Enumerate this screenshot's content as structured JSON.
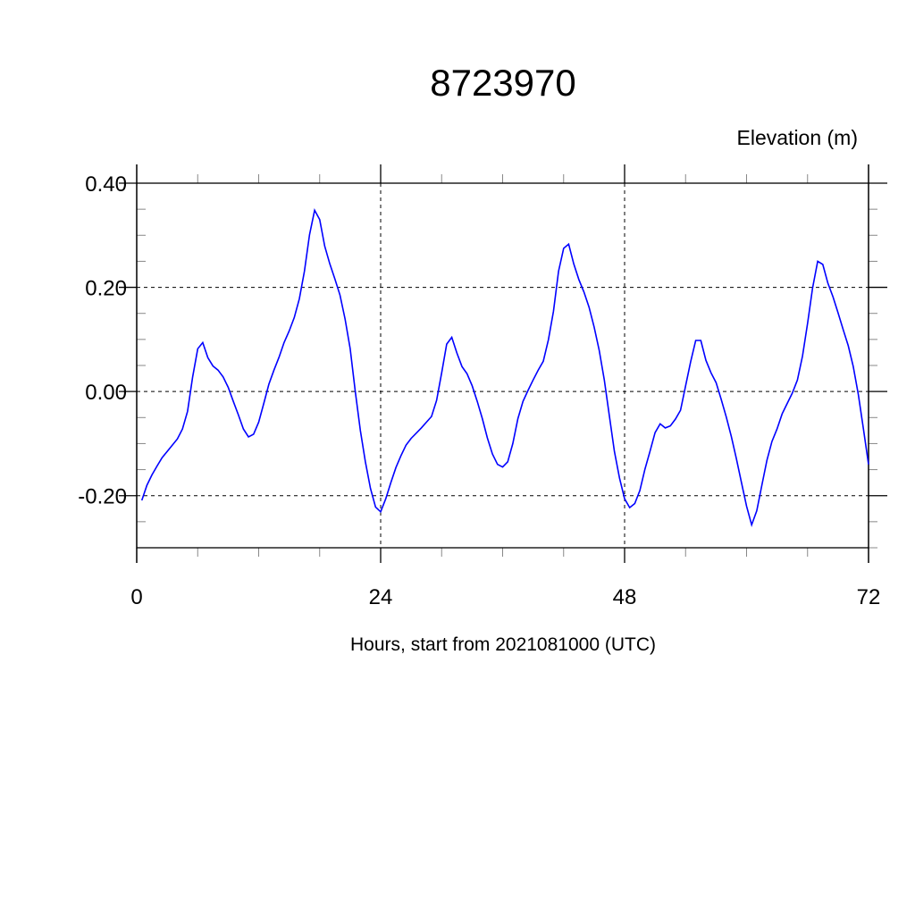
{
  "chart_data": {
    "type": "line",
    "title": "8723970",
    "ylabel": "Elevation (m)",
    "xlabel": "Hours, start from 2021081000 (UTC)",
    "xlim": [
      0,
      72
    ],
    "ylim": [
      -0.3,
      0.4
    ],
    "xticks": [
      0,
      24,
      48,
      72
    ],
    "xtick_labels": [
      "0",
      "24",
      "48",
      "72"
    ],
    "yticks": [
      -0.2,
      0.0,
      0.2,
      0.4
    ],
    "ytick_labels": [
      "-0.20",
      "0.00",
      "0.20",
      "0.40"
    ],
    "grid": "dashed, at major ticks",
    "line_color": "#0000ff",
    "series": [
      {
        "x": [
          0.5,
          1,
          1.5,
          2,
          2.5,
          3,
          3.5,
          4,
          4.5,
          5,
          5.5,
          6,
          6.5,
          7,
          7.5,
          8,
          8.5,
          9,
          9.5,
          10,
          10.5,
          11,
          11.5,
          12,
          12.5,
          13,
          13.5,
          14,
          14.5,
          15,
          15.5,
          16,
          16.5,
          17,
          17.5,
          18,
          18.5,
          19,
          19.5,
          20,
          20.5,
          21,
          21.5,
          22,
          22.5,
          23,
          23.5,
          24,
          24.5,
          25,
          25.5,
          26,
          26.5,
          27,
          27.5,
          28,
          28.5,
          29,
          29.5,
          30,
          30.5,
          31,
          31.5,
          32,
          32.5,
          33,
          33.5,
          34,
          34.5,
          35,
          35.5,
          36,
          36.5,
          37,
          37.5,
          38,
          38.5,
          39,
          39.5,
          40,
          40.5,
          41,
          41.5,
          42,
          42.5,
          43,
          43.5,
          44,
          44.5,
          45,
          45.5,
          46,
          46.5,
          47,
          47.5,
          48,
          48.5,
          49,
          49.5,
          50,
          50.5,
          51,
          51.5,
          52,
          52.5,
          53,
          53.5,
          54,
          54.5,
          55,
          55.5,
          56,
          56.5,
          57,
          57.5,
          58,
          58.5,
          59,
          59.5,
          60,
          60.5,
          61,
          61.5,
          62,
          62.5,
          63,
          63.5,
          64,
          64.5,
          65,
          65.5,
          66,
          66.5,
          67,
          67.5,
          68,
          68.5,
          69,
          69.5,
          70,
          70.5,
          71,
          71.5,
          72
        ],
        "y": [
          -0.209,
          -0.18,
          -0.16,
          -0.143,
          -0.127,
          -0.115,
          -0.103,
          -0.091,
          -0.072,
          -0.038,
          0.028,
          0.082,
          0.094,
          0.065,
          0.049,
          0.041,
          0.028,
          0.008,
          -0.019,
          -0.045,
          -0.072,
          -0.087,
          -0.082,
          -0.059,
          -0.023,
          0.014,
          0.041,
          0.066,
          0.094,
          0.116,
          0.142,
          0.178,
          0.231,
          0.301,
          0.348,
          0.33,
          0.279,
          0.245,
          0.216,
          0.185,
          0.139,
          0.082,
          0.0,
          -0.075,
          -0.135,
          -0.186,
          -0.222,
          -0.231,
          -0.206,
          -0.175,
          -0.146,
          -0.123,
          -0.103,
          -0.09,
          -0.08,
          -0.07,
          -0.059,
          -0.048,
          -0.017,
          0.036,
          0.091,
          0.104,
          0.074,
          0.048,
          0.034,
          0.011,
          -0.019,
          -0.052,
          -0.089,
          -0.12,
          -0.14,
          -0.145,
          -0.135,
          -0.1,
          -0.052,
          -0.019,
          0.002,
          0.022,
          0.041,
          0.058,
          0.099,
          0.154,
          0.231,
          0.275,
          0.283,
          0.245,
          0.215,
          0.191,
          0.162,
          0.124,
          0.079,
          0.022,
          -0.046,
          -0.115,
          -0.166,
          -0.206,
          -0.223,
          -0.215,
          -0.19,
          -0.149,
          -0.115,
          -0.079,
          -0.062,
          -0.07,
          -0.066,
          -0.053,
          -0.036,
          0.011,
          0.057,
          0.098,
          0.098,
          0.06,
          0.036,
          0.017,
          -0.015,
          -0.049,
          -0.086,
          -0.129,
          -0.175,
          -0.22,
          -0.256,
          -0.229,
          -0.18,
          -0.132,
          -0.096,
          -0.072,
          -0.043,
          -0.023,
          -0.003,
          0.022,
          0.068,
          0.131,
          0.199,
          0.25,
          0.244,
          0.208,
          0.182,
          0.151,
          0.119,
          0.088,
          0.048,
          -0.006,
          -0.072,
          -0.14
        ]
      }
    ]
  }
}
